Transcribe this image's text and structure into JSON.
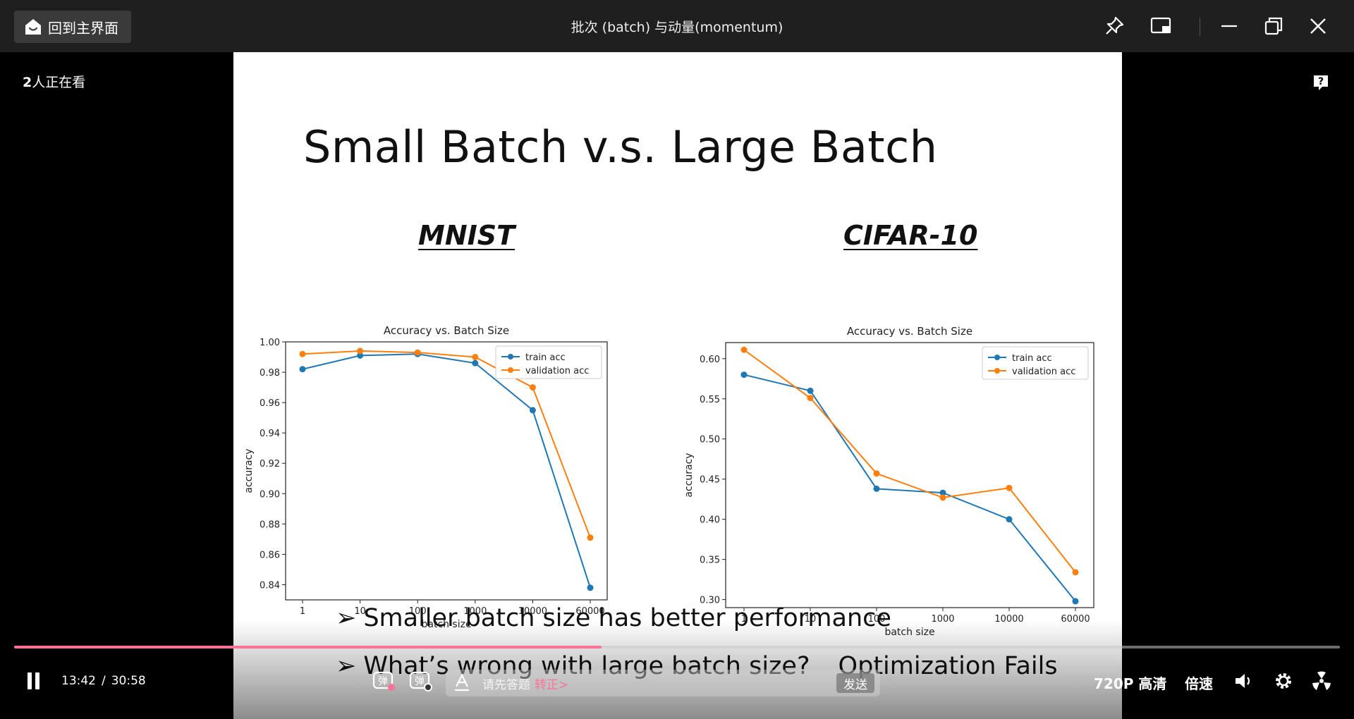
{
  "window": {
    "home_label": "回到主界面",
    "title": "批次 (batch) 与动量(momentum)"
  },
  "stage": {
    "viewers_count": "2",
    "viewers_suffix": "人正在看"
  },
  "slide": {
    "title": "Small Batch v.s. Large Batch",
    "bullets": [
      "Smaller batch size has better performance",
      "What’s wrong with large batch size?"
    ],
    "bullet_answer": "Optimization Fails"
  },
  "chart_data": [
    {
      "type": "line",
      "dataset": "MNIST",
      "title": "Accuracy vs. Batch Size",
      "xlabel": "batch size",
      "ylabel": "accuracy",
      "categories": [
        "1",
        "10",
        "100",
        "1000",
        "10000",
        "60000"
      ],
      "ylim": [
        0.83,
        1.0
      ],
      "yticks": [
        "0.84",
        "0.86",
        "0.88",
        "0.90",
        "0.92",
        "0.94",
        "0.96",
        "0.98",
        "1.00"
      ],
      "yticks_values": [
        0.84,
        0.86,
        0.88,
        0.9,
        0.92,
        0.94,
        0.96,
        0.98,
        1.0
      ],
      "legend_position": "top-right",
      "series": [
        {
          "name": "train acc",
          "color": "#1f77b4",
          "values": [
            0.982,
            0.991,
            0.992,
            0.986,
            0.955,
            0.838
          ]
        },
        {
          "name": "validation acc",
          "color": "#ff7f0e",
          "values": [
            0.992,
            0.994,
            0.993,
            0.99,
            0.97,
            0.871
          ]
        }
      ]
    },
    {
      "type": "line",
      "dataset": "CIFAR-10",
      "title": "Accuracy vs. Batch Size",
      "xlabel": "batch size",
      "ylabel": "accuracy",
      "categories": [
        "1",
        "10",
        "100",
        "1000",
        "10000",
        "60000"
      ],
      "ylim": [
        0.29,
        0.62
      ],
      "yticks": [
        "0.30",
        "0.35",
        "0.40",
        "0.45",
        "0.50",
        "0.55",
        "0.60"
      ],
      "yticks_values": [
        0.3,
        0.35,
        0.4,
        0.45,
        0.5,
        0.55,
        0.6
      ],
      "legend_position": "top-right",
      "series": [
        {
          "name": "train acc",
          "color": "#1f77b4",
          "values": [
            0.58,
            0.56,
            0.438,
            0.433,
            0.4,
            0.298
          ]
        },
        {
          "name": "validation acc",
          "color": "#ff7f0e",
          "values": [
            0.611,
            0.551,
            0.457,
            0.427,
            0.439,
            0.334
          ]
        }
      ]
    }
  ],
  "player": {
    "current_time": "13:42",
    "time_separator": "/",
    "total_time": "30:58",
    "progress_fraction": 0.443,
    "danmu_placeholder": "请先答题",
    "danmu_link": "转正>",
    "send_label": "发送",
    "quality_label": "720P 高清",
    "speed_label": "倍速",
    "accent_color": "#fb7299"
  }
}
